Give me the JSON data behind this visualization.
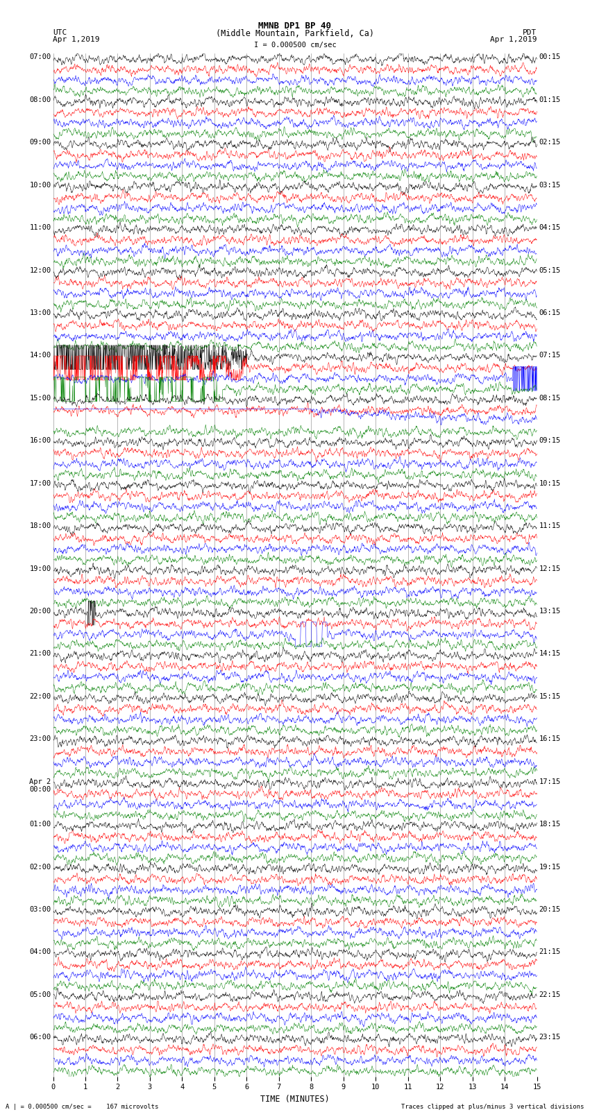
{
  "title_line1": "MMNB DP1 BP 40",
  "title_line2": "(Middle Mountain, Parkfield, Ca)",
  "scale_text": "I = 0.000500 cm/sec",
  "left_label_top": "UTC",
  "left_label_date": "Apr 1,2019",
  "right_label_top": "PDT",
  "right_label_date": "Apr 1,2019",
  "xlabel": "TIME (MINUTES)",
  "bottom_left_text": "A | = 0.000500 cm/sec =    167 microvolts",
  "bottom_right_text": "Traces clipped at plus/minus 3 vertical divisions",
  "bg_color": "#ffffff",
  "trace_colors": [
    "black",
    "red",
    "blue",
    "green"
  ],
  "grid_color": "#808080",
  "n_hours": 24,
  "n_minutes": 15,
  "noise_std": 0.012,
  "trace_scale": 0.38,
  "row_labels_utc": [
    "07:00",
    "08:00",
    "09:00",
    "10:00",
    "11:00",
    "12:00",
    "13:00",
    "14:00",
    "15:00",
    "16:00",
    "17:00",
    "18:00",
    "19:00",
    "20:00",
    "21:00",
    "22:00",
    "23:00",
    "Apr 2\n00:00",
    "01:00",
    "02:00",
    "03:00",
    "04:00",
    "05:00",
    "06:00"
  ],
  "row_labels_pdt": [
    "00:15",
    "01:15",
    "02:15",
    "03:15",
    "04:15",
    "05:15",
    "06:15",
    "07:15",
    "08:15",
    "09:15",
    "10:15",
    "11:15",
    "12:15",
    "13:15",
    "14:15",
    "15:15",
    "16:15",
    "17:15",
    "18:15",
    "19:15",
    "20:15",
    "21:15",
    "22:15",
    "23:15"
  ]
}
